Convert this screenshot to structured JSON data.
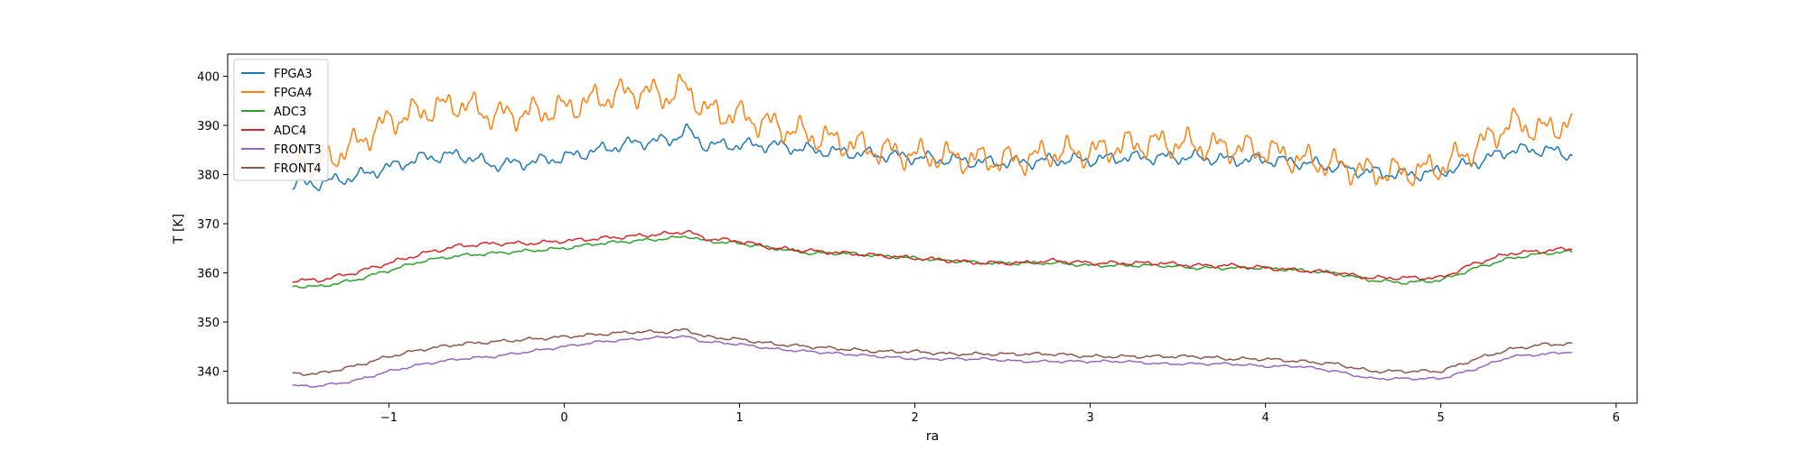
{
  "chart_data": {
    "type": "line",
    "xlabel": "ra",
    "ylabel": "T [K]",
    "xlim": [
      -1.92,
      6.12
    ],
    "ylim": [
      333.5,
      404.5
    ],
    "xticks": [
      -1,
      0,
      1,
      2,
      3,
      4,
      5,
      6
    ],
    "xtick_labels": [
      "−1",
      "0",
      "1",
      "2",
      "3",
      "4",
      "5",
      "6"
    ],
    "yticks": [
      340,
      350,
      360,
      370,
      380,
      390,
      400
    ],
    "ytick_labels": [
      "340",
      "350",
      "360",
      "370",
      "380",
      "390",
      "400"
    ],
    "grid": false,
    "legend_position": "top-left",
    "x": [
      -1.55,
      -1.4,
      -1.2,
      -1.0,
      -0.8,
      -0.6,
      -0.4,
      -0.2,
      0.0,
      0.2,
      0.4,
      0.6,
      0.7,
      0.8,
      1.0,
      1.2,
      1.4,
      1.6,
      1.8,
      2.0,
      2.2,
      2.4,
      2.6,
      2.8,
      3.0,
      3.2,
      3.4,
      3.6,
      3.8,
      4.0,
      4.2,
      4.4,
      4.6,
      4.8,
      5.0,
      5.2,
      5.4,
      5.6,
      5.75
    ],
    "series": [
      {
        "name": "FPGA3",
        "color": "#1f77b4",
        "noise": 1.6,
        "values": [
          378.0,
          378.2,
          379.5,
          381.5,
          383.5,
          384.0,
          382.0,
          382.5,
          383.5,
          385.0,
          386.5,
          387.0,
          389.0,
          386.0,
          386.0,
          386.0,
          385.0,
          384.5,
          384.0,
          383.5,
          383.0,
          382.5,
          382.5,
          383.0,
          383.0,
          383.5,
          383.5,
          383.5,
          383.0,
          383.0,
          382.5,
          381.5,
          380.5,
          380.0,
          380.5,
          382.5,
          385.0,
          385.0,
          384.0
        ]
      },
      {
        "name": "FPGA4",
        "color": "#ff7f0e",
        "noise": 3.6,
        "values": [
          383.0,
          382.0,
          386.0,
          391.0,
          393.0,
          394.5,
          392.0,
          392.5,
          393.5,
          395.5,
          397.0,
          396.0,
          398.0,
          393.0,
          392.0,
          390.0,
          388.0,
          386.5,
          385.0,
          384.0,
          383.5,
          383.0,
          383.0,
          384.5,
          384.5,
          386.0,
          386.5,
          386.0,
          385.5,
          385.0,
          383.0,
          382.0,
          380.5,
          380.5,
          381.5,
          385.5,
          390.5,
          389.0,
          391.0
        ]
      },
      {
        "name": "ADC3",
        "color": "#2ca02c",
        "noise": 0.4,
        "values": [
          357.3,
          357.2,
          358.5,
          360.5,
          362.5,
          363.5,
          364.0,
          364.5,
          365.0,
          366.0,
          366.5,
          367.0,
          367.5,
          366.5,
          366.0,
          365.0,
          364.0,
          364.0,
          363.5,
          363.0,
          362.5,
          362.0,
          362.0,
          362.0,
          361.5,
          361.5,
          361.5,
          361.0,
          361.0,
          361.0,
          360.5,
          360.0,
          358.5,
          358.0,
          358.5,
          361.0,
          363.0,
          364.0,
          364.3
        ]
      },
      {
        "name": "ADC4",
        "color": "#d62728",
        "noise": 0.5,
        "values": [
          358.5,
          358.5,
          360.0,
          362.0,
          364.0,
          365.5,
          366.0,
          366.0,
          366.5,
          367.0,
          367.5,
          368.0,
          368.5,
          367.0,
          366.5,
          365.0,
          364.5,
          364.0,
          363.5,
          363.0,
          362.5,
          362.0,
          362.0,
          362.5,
          362.0,
          362.0,
          362.0,
          361.5,
          361.5,
          361.0,
          360.5,
          360.0,
          359.0,
          359.0,
          359.0,
          362.0,
          364.0,
          364.5,
          365.0
        ]
      },
      {
        "name": "FRONT3",
        "color": "#9467bd",
        "noise": 0.3,
        "values": [
          337.0,
          337.0,
          338.0,
          340.0,
          341.5,
          342.5,
          343.0,
          344.0,
          345.0,
          346.0,
          346.5,
          347.0,
          347.0,
          346.0,
          345.5,
          344.5,
          344.0,
          343.5,
          343.0,
          342.5,
          342.5,
          342.5,
          342.0,
          342.0,
          342.0,
          342.0,
          341.5,
          341.5,
          341.5,
          341.0,
          341.0,
          340.0,
          338.5,
          338.5,
          338.5,
          340.5,
          343.0,
          343.5,
          344.0
        ]
      },
      {
        "name": "FRONT4",
        "color": "#8c564b",
        "noise": 0.4,
        "values": [
          339.5,
          339.5,
          341.0,
          343.0,
          344.5,
          345.5,
          346.0,
          346.5,
          347.0,
          347.5,
          348.0,
          348.0,
          348.5,
          347.0,
          346.5,
          345.5,
          345.0,
          344.5,
          344.0,
          344.0,
          343.5,
          343.5,
          343.5,
          343.5,
          343.0,
          343.0,
          343.0,
          343.0,
          342.5,
          342.5,
          342.0,
          341.5,
          340.0,
          340.0,
          340.0,
          342.5,
          344.5,
          345.5,
          345.5
        ]
      }
    ]
  }
}
